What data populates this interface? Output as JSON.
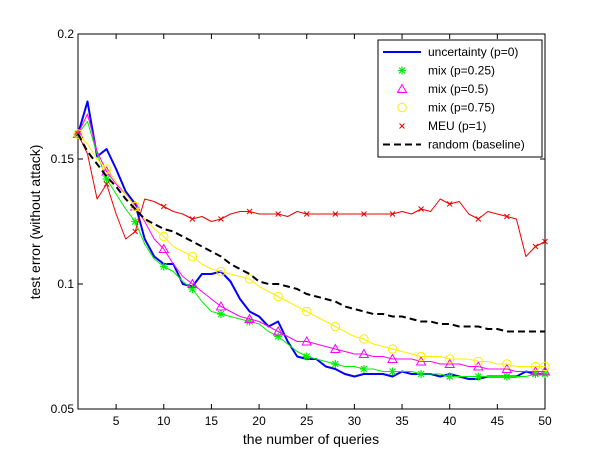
{
  "chart_data": {
    "type": "line",
    "title": "",
    "xlabel": "the number of queries",
    "ylabel": "test error (without attack)",
    "xlim": [
      1,
      50
    ],
    "ylim": [
      0.05,
      0.2
    ],
    "xticks": [
      5,
      10,
      15,
      20,
      25,
      30,
      35,
      40,
      45,
      50
    ],
    "yticks": [
      0.05,
      0.1,
      0.15,
      0.2
    ],
    "ytick_labels": [
      "0.05",
      "0.1",
      "0.15",
      "0.2"
    ],
    "grid": false,
    "legend_position": "top-right",
    "series": [
      {
        "name": "uncertainty (p=0)",
        "color": "#0000ff",
        "marker": "none",
        "line": "solid",
        "width": 2,
        "x": [
          1,
          2,
          3,
          4,
          5,
          6,
          7,
          8,
          9,
          10,
          11,
          12,
          13,
          14,
          15,
          16,
          17,
          18,
          19,
          20,
          21,
          22,
          23,
          24,
          25,
          26,
          27,
          28,
          29,
          30,
          31,
          32,
          33,
          34,
          35,
          36,
          37,
          38,
          39,
          40,
          41,
          42,
          43,
          44,
          45,
          46,
          47,
          48,
          49,
          50
        ],
        "y": [
          0.16,
          0.173,
          0.151,
          0.154,
          0.146,
          0.137,
          0.132,
          0.118,
          0.111,
          0.108,
          0.108,
          0.1,
          0.099,
          0.104,
          0.104,
          0.105,
          0.101,
          0.094,
          0.089,
          0.087,
          0.083,
          0.085,
          0.077,
          0.071,
          0.07,
          0.07,
          0.067,
          0.066,
          0.064,
          0.063,
          0.064,
          0.064,
          0.064,
          0.063,
          0.065,
          0.064,
          0.064,
          0.064,
          0.063,
          0.064,
          0.063,
          0.062,
          0.062,
          0.063,
          0.063,
          0.063,
          0.063,
          0.065,
          0.064,
          0.064
        ]
      },
      {
        "name": "mix (p=0.25)",
        "color": "#00ee00",
        "marker": "asterisk",
        "marker_every": 3,
        "line": "solid",
        "width": 1,
        "x": [
          1,
          2,
          3,
          4,
          5,
          6,
          7,
          8,
          9,
          10,
          11,
          12,
          13,
          14,
          15,
          16,
          17,
          18,
          19,
          20,
          21,
          22,
          23,
          24,
          25,
          26,
          27,
          28,
          29,
          30,
          31,
          32,
          33,
          34,
          35,
          36,
          37,
          38,
          39,
          40,
          41,
          42,
          43,
          44,
          45,
          46,
          47,
          48,
          49,
          50
        ],
        "y": [
          0.16,
          0.165,
          0.152,
          0.142,
          0.136,
          0.13,
          0.125,
          0.116,
          0.11,
          0.107,
          0.105,
          0.101,
          0.098,
          0.093,
          0.089,
          0.088,
          0.087,
          0.086,
          0.085,
          0.084,
          0.081,
          0.079,
          0.076,
          0.073,
          0.071,
          0.07,
          0.069,
          0.068,
          0.067,
          0.067,
          0.066,
          0.066,
          0.065,
          0.065,
          0.065,
          0.065,
          0.064,
          0.064,
          0.064,
          0.063,
          0.063,
          0.063,
          0.063,
          0.063,
          0.063,
          0.063,
          0.063,
          0.063,
          0.064,
          0.064
        ]
      },
      {
        "name": "mix (p=0.5)",
        "color": "#ff00ff",
        "marker": "triangle",
        "marker_every": 3,
        "line": "solid",
        "width": 1,
        "x": [
          1,
          2,
          3,
          4,
          5,
          6,
          7,
          8,
          9,
          10,
          11,
          12,
          13,
          14,
          15,
          16,
          17,
          18,
          19,
          20,
          21,
          22,
          23,
          24,
          25,
          26,
          27,
          28,
          29,
          30,
          31,
          32,
          33,
          34,
          35,
          36,
          37,
          38,
          39,
          40,
          41,
          42,
          43,
          44,
          45,
          46,
          47,
          48,
          49,
          50
        ],
        "y": [
          0.16,
          0.168,
          0.153,
          0.145,
          0.14,
          0.136,
          0.131,
          0.125,
          0.118,
          0.114,
          0.108,
          0.103,
          0.1,
          0.097,
          0.094,
          0.091,
          0.089,
          0.087,
          0.086,
          0.085,
          0.083,
          0.081,
          0.079,
          0.077,
          0.077,
          0.076,
          0.075,
          0.074,
          0.073,
          0.072,
          0.072,
          0.071,
          0.071,
          0.07,
          0.07,
          0.07,
          0.069,
          0.069,
          0.068,
          0.068,
          0.068,
          0.067,
          0.067,
          0.066,
          0.066,
          0.066,
          0.065,
          0.065,
          0.065,
          0.065
        ]
      },
      {
        "name": "mix (p=0.75)",
        "color": "#ffee00",
        "marker": "circle",
        "marker_every": 3,
        "line": "solid",
        "width": 1,
        "x": [
          1,
          2,
          3,
          4,
          5,
          6,
          7,
          8,
          9,
          10,
          11,
          12,
          13,
          14,
          15,
          16,
          17,
          18,
          19,
          20,
          21,
          22,
          23,
          24,
          25,
          26,
          27,
          28,
          29,
          30,
          31,
          32,
          33,
          34,
          35,
          36,
          37,
          38,
          39,
          40,
          41,
          42,
          43,
          44,
          45,
          46,
          47,
          48,
          49,
          50
        ],
        "y": [
          0.16,
          0.156,
          0.15,
          0.146,
          0.141,
          0.136,
          0.131,
          0.126,
          0.122,
          0.119,
          0.115,
          0.113,
          0.111,
          0.108,
          0.106,
          0.105,
          0.104,
          0.103,
          0.102,
          0.099,
          0.097,
          0.095,
          0.093,
          0.091,
          0.089,
          0.087,
          0.085,
          0.083,
          0.081,
          0.079,
          0.078,
          0.076,
          0.075,
          0.074,
          0.073,
          0.072,
          0.071,
          0.071,
          0.071,
          0.07,
          0.07,
          0.07,
          0.069,
          0.069,
          0.068,
          0.068,
          0.067,
          0.067,
          0.067,
          0.067
        ]
      },
      {
        "name": "MEU (p=1)",
        "color": "#ee0000",
        "marker": "x",
        "marker_every": 3,
        "line": "solid",
        "width": 1,
        "x": [
          1,
          2,
          3,
          4,
          5,
          6,
          7,
          8,
          9,
          10,
          11,
          12,
          13,
          14,
          15,
          16,
          17,
          18,
          19,
          20,
          21,
          22,
          23,
          24,
          25,
          26,
          27,
          28,
          29,
          30,
          31,
          32,
          33,
          34,
          35,
          36,
          37,
          38,
          39,
          40,
          41,
          42,
          43,
          44,
          45,
          46,
          47,
          48,
          49,
          50
        ],
        "y": [
          0.16,
          0.152,
          0.134,
          0.14,
          0.128,
          0.118,
          0.121,
          0.134,
          0.133,
          0.131,
          0.129,
          0.128,
          0.126,
          0.127,
          0.125,
          0.126,
          0.128,
          0.129,
          0.129,
          0.128,
          0.128,
          0.128,
          0.127,
          0.129,
          0.128,
          0.128,
          0.128,
          0.128,
          0.128,
          0.128,
          0.128,
          0.128,
          0.128,
          0.128,
          0.129,
          0.128,
          0.13,
          0.129,
          0.134,
          0.132,
          0.133,
          0.128,
          0.126,
          0.129,
          0.128,
          0.127,
          0.126,
          0.111,
          0.115,
          0.117
        ]
      },
      {
        "name": "random (baseline)",
        "color": "#000000",
        "marker": "none",
        "line": "dashed",
        "width": 2,
        "x": [
          1,
          2,
          3,
          4,
          5,
          6,
          7,
          8,
          9,
          10,
          11,
          12,
          13,
          14,
          15,
          16,
          17,
          18,
          19,
          20,
          21,
          22,
          23,
          24,
          25,
          26,
          27,
          28,
          29,
          30,
          31,
          32,
          33,
          34,
          35,
          36,
          37,
          38,
          39,
          40,
          41,
          42,
          43,
          44,
          45,
          46,
          47,
          48,
          49,
          50
        ],
        "y": [
          0.16,
          0.153,
          0.148,
          0.143,
          0.139,
          0.134,
          0.13,
          0.126,
          0.124,
          0.122,
          0.121,
          0.119,
          0.117,
          0.115,
          0.113,
          0.111,
          0.108,
          0.106,
          0.104,
          0.101,
          0.1,
          0.1,
          0.099,
          0.098,
          0.096,
          0.095,
          0.094,
          0.093,
          0.091,
          0.09,
          0.089,
          0.088,
          0.088,
          0.087,
          0.087,
          0.086,
          0.085,
          0.085,
          0.084,
          0.084,
          0.083,
          0.083,
          0.083,
          0.082,
          0.082,
          0.081,
          0.081,
          0.081,
          0.081,
          0.081
        ]
      }
    ]
  }
}
